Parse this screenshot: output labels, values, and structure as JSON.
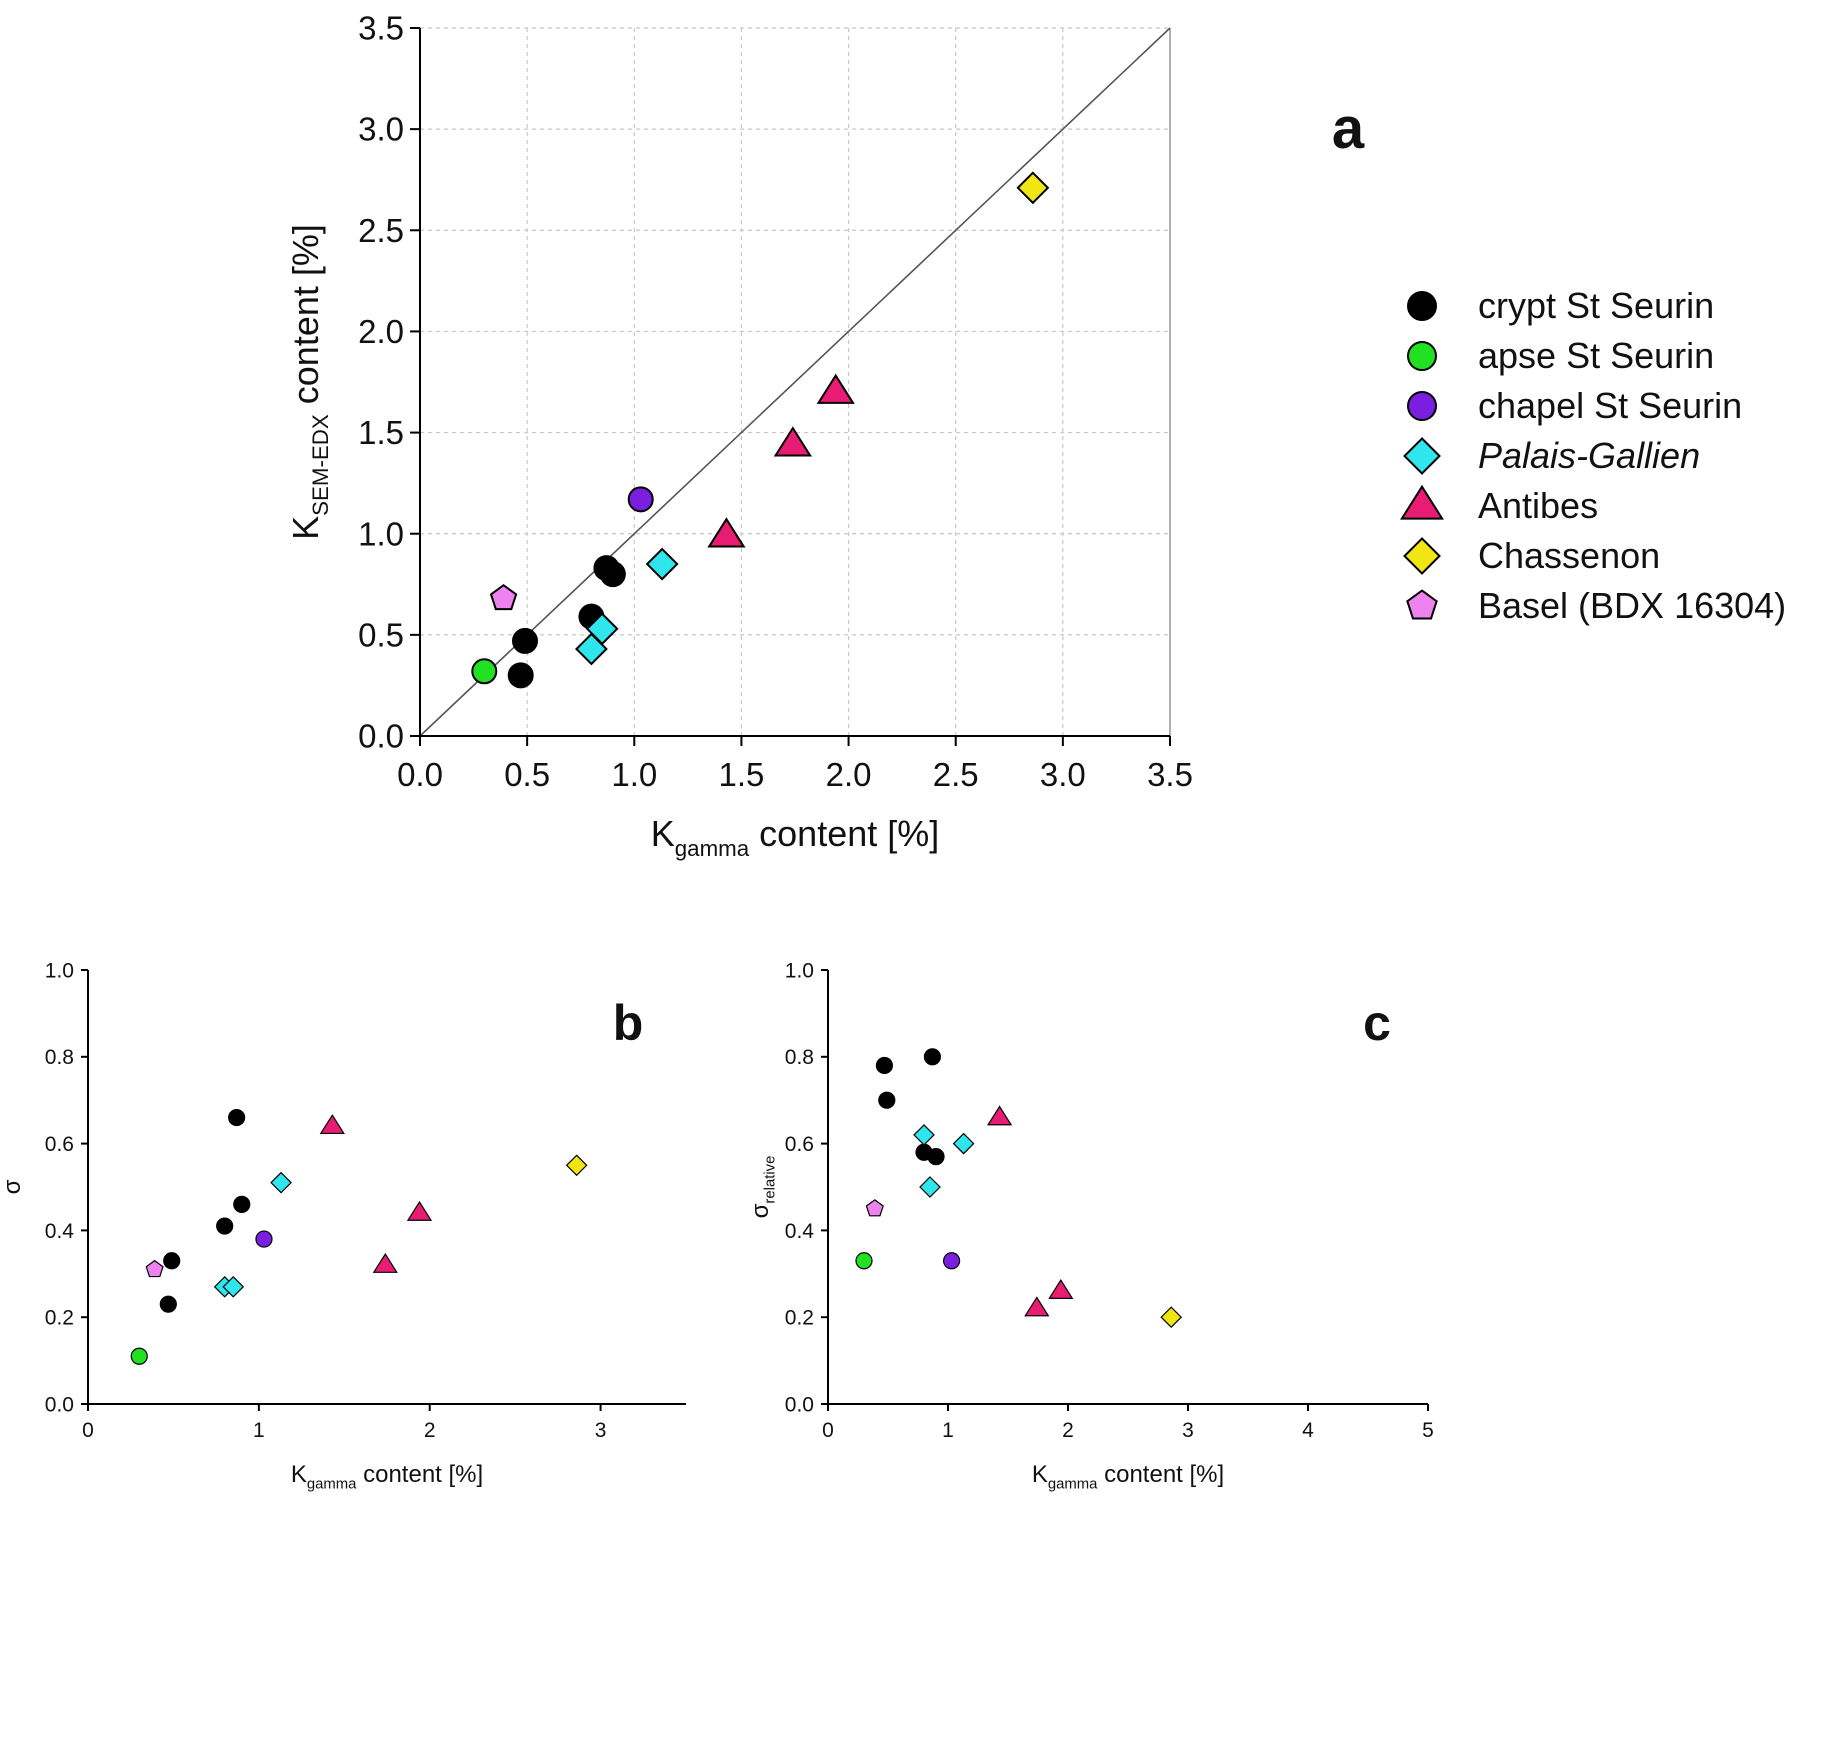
{
  "figure": {
    "legend": [
      {
        "key": "crypt",
        "label": "crypt St Seurin",
        "marker": "circle",
        "color": "#000000",
        "italic": false
      },
      {
        "key": "apse",
        "label": "apse St Seurin",
        "marker": "circle",
        "color": "#22e022",
        "italic": false
      },
      {
        "key": "chapel",
        "label": "chapel St Seurin",
        "marker": "circle",
        "color": "#7a1fe0",
        "italic": false
      },
      {
        "key": "palais",
        "label": "Palais-Gallien",
        "marker": "diamond",
        "color": "#2ee6ec",
        "italic": true
      },
      {
        "key": "antibes",
        "label": "Antibes",
        "marker": "triangle",
        "color": "#e81c72",
        "italic": false
      },
      {
        "key": "chassenon",
        "label": "Chassenon",
        "marker": "diamond",
        "color": "#f0e614",
        "italic": false
      },
      {
        "key": "basel",
        "label": "Basel (BDX 16304)",
        "marker": "pentagon",
        "color": "#ee82ee",
        "italic": false
      }
    ]
  },
  "chart_data": [
    {
      "panel": "a",
      "type": "scatter",
      "title": "",
      "xlabel": {
        "main": "K",
        "sub": "gamma",
        "rest": " content [%]"
      },
      "ylabel": {
        "main": "K",
        "sub": "SEM-EDX",
        "rest": " content [%]"
      },
      "xlim": [
        0,
        3.5
      ],
      "ylim": [
        0,
        3.5
      ],
      "xticks": [
        0.0,
        0.5,
        1.0,
        1.5,
        2.0,
        2.5,
        3.0,
        3.5
      ],
      "xticklabels": [
        "0.0",
        "0.5",
        "1.0",
        "1.5",
        "2.0",
        "2.5",
        "3.0",
        "3.5"
      ],
      "yticks": [
        0.0,
        0.5,
        1.0,
        1.5,
        2.0,
        2.5,
        3.0,
        3.5
      ],
      "yticklabels": [
        "0.0",
        "0.5",
        "1.0",
        "1.5",
        "2.0",
        "2.5",
        "3.0",
        "3.5"
      ],
      "grid": true,
      "reference_line": "1:1",
      "legend_position": "right",
      "series": [
        {
          "key": "crypt",
          "points": [
            [
              0.47,
              0.3
            ],
            [
              0.49,
              0.47
            ],
            [
              0.8,
              0.59
            ],
            [
              0.87,
              0.83
            ],
            [
              0.9,
              0.8
            ]
          ]
        },
        {
          "key": "apse",
          "points": [
            [
              0.3,
              0.32
            ]
          ]
        },
        {
          "key": "chapel",
          "points": [
            [
              1.03,
              1.17
            ]
          ]
        },
        {
          "key": "palais",
          "points": [
            [
              0.8,
              0.43
            ],
            [
              0.85,
              0.53
            ],
            [
              1.13,
              0.85
            ]
          ]
        },
        {
          "key": "antibes",
          "points": [
            [
              1.43,
              0.99
            ],
            [
              1.74,
              1.44
            ],
            [
              1.94,
              1.7
            ]
          ]
        },
        {
          "key": "chassenon",
          "points": [
            [
              2.86,
              2.71
            ]
          ]
        },
        {
          "key": "basel",
          "points": [
            [
              0.39,
              0.68
            ]
          ]
        }
      ]
    },
    {
      "panel": "b",
      "type": "scatter",
      "title": "",
      "xlabel": {
        "main": "K",
        "sub": "gamma",
        "rest": " content [%]"
      },
      "ylabel": {
        "main": "σ",
        "sub": "",
        "rest": ""
      },
      "xlim": [
        0,
        3.5
      ],
      "ylim": [
        0,
        1.0
      ],
      "xticks": [
        0,
        1,
        2,
        3
      ],
      "xticklabels": [
        "0",
        "1",
        "2",
        "3"
      ],
      "yticks": [
        0.0,
        0.2,
        0.4,
        0.6,
        0.8,
        1.0
      ],
      "yticklabels": [
        "0.0",
        "0.2",
        "0.4",
        "0.6",
        "0.8",
        "1.0"
      ],
      "grid": false,
      "series": [
        {
          "key": "crypt",
          "points": [
            [
              0.47,
              0.23
            ],
            [
              0.49,
              0.33
            ],
            [
              0.8,
              0.41
            ],
            [
              0.87,
              0.66
            ],
            [
              0.9,
              0.46
            ]
          ]
        },
        {
          "key": "apse",
          "points": [
            [
              0.3,
              0.11
            ]
          ]
        },
        {
          "key": "chapel",
          "points": [
            [
              1.03,
              0.38
            ]
          ]
        },
        {
          "key": "palais",
          "points": [
            [
              0.8,
              0.27
            ],
            [
              0.85,
              0.27
            ],
            [
              1.13,
              0.51
            ]
          ]
        },
        {
          "key": "antibes",
          "points": [
            [
              1.43,
              0.64
            ],
            [
              1.74,
              0.32
            ],
            [
              1.94,
              0.44
            ]
          ]
        },
        {
          "key": "chassenon",
          "points": [
            [
              2.86,
              0.55
            ]
          ]
        },
        {
          "key": "basel",
          "points": [
            [
              0.39,
              0.31
            ]
          ]
        }
      ]
    },
    {
      "panel": "c",
      "type": "scatter",
      "title": "",
      "xlabel": {
        "main": "K",
        "sub": "gamma",
        "rest": " content [%]"
      },
      "ylabel": {
        "main": "σ",
        "sub": "relative",
        "rest": ""
      },
      "xlim": [
        0,
        5
      ],
      "ylim": [
        0,
        1.0
      ],
      "xticks": [
        0,
        1,
        2,
        3,
        4,
        5
      ],
      "xticklabels": [
        "0",
        "1",
        "2",
        "3",
        "4",
        "5"
      ],
      "yticks": [
        0.0,
        0.2,
        0.4,
        0.6,
        0.8,
        1.0
      ],
      "yticklabels": [
        "0.0",
        "0.2",
        "0.4",
        "0.6",
        "0.8",
        "1.0"
      ],
      "grid": false,
      "series": [
        {
          "key": "crypt",
          "points": [
            [
              0.47,
              0.78
            ],
            [
              0.49,
              0.7
            ],
            [
              0.8,
              0.58
            ],
            [
              0.87,
              0.8
            ],
            [
              0.9,
              0.57
            ]
          ]
        },
        {
          "key": "apse",
          "points": [
            [
              0.3,
              0.33
            ]
          ]
        },
        {
          "key": "chapel",
          "points": [
            [
              1.03,
              0.33
            ]
          ]
        },
        {
          "key": "palais",
          "points": [
            [
              0.8,
              0.62
            ],
            [
              0.85,
              0.5
            ],
            [
              1.13,
              0.6
            ]
          ]
        },
        {
          "key": "antibes",
          "points": [
            [
              1.43,
              0.66
            ],
            [
              1.74,
              0.22
            ],
            [
              1.94,
              0.26
            ]
          ]
        },
        {
          "key": "chassenon",
          "points": [
            [
              2.86,
              0.2
            ]
          ]
        },
        {
          "key": "basel",
          "points": [
            [
              0.39,
              0.45
            ]
          ]
        }
      ]
    }
  ]
}
